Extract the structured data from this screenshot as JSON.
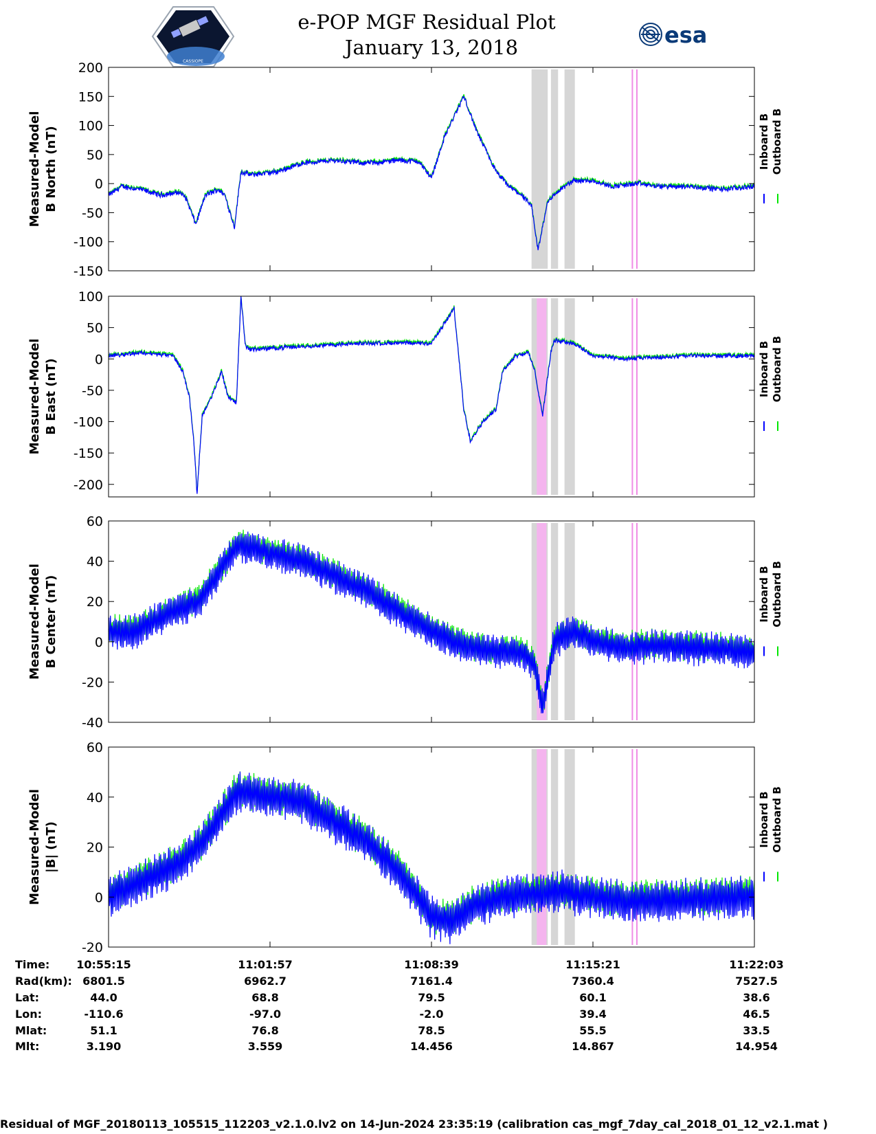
{
  "header": {
    "title_line1": "e-POP MGF Residual Plot",
    "title_line2": "January 13, 2018",
    "esa_label": "esa",
    "mission_logo_text": "CASSIOPE"
  },
  "colors": {
    "inboard": "#0000ff",
    "outboard": "#00e600",
    "gray_band": "#d6d6d6",
    "pink_band": "#f4b4ee"
  },
  "legend": {
    "inboard": "Inboard B",
    "outboard": "Outboard B"
  },
  "chart_data": [
    {
      "type": "line",
      "ylabel_line1": "Measured-Model",
      "ylabel_line2": "B North (nT)",
      "ylim": [
        -150,
        200
      ],
      "yticks": [
        -150,
        -100,
        -50,
        0,
        50,
        100,
        150,
        200
      ],
      "ytick_labels": [
        "-150",
        "-100",
        "-50",
        "0",
        "50",
        "100",
        "150",
        "200"
      ],
      "pink_bands": false,
      "series_keypoints": [
        [
          0,
          -20
        ],
        [
          0.02,
          -5
        ],
        [
          0.05,
          -10
        ],
        [
          0.08,
          -20
        ],
        [
          0.11,
          -15
        ],
        [
          0.12,
          -25
        ],
        [
          0.135,
          -70
        ],
        [
          0.15,
          -20
        ],
        [
          0.17,
          -10
        ],
        [
          0.18,
          -20
        ],
        [
          0.195,
          -75
        ],
        [
          0.205,
          20
        ],
        [
          0.22,
          15
        ],
        [
          0.26,
          20
        ],
        [
          0.3,
          35
        ],
        [
          0.35,
          40
        ],
        [
          0.4,
          35
        ],
        [
          0.45,
          40
        ],
        [
          0.48,
          38
        ],
        [
          0.5,
          10
        ],
        [
          0.52,
          80
        ],
        [
          0.55,
          150
        ],
        [
          0.57,
          90
        ],
        [
          0.6,
          20
        ],
        [
          0.62,
          -5
        ],
        [
          0.64,
          -20
        ],
        [
          0.655,
          -40
        ],
        [
          0.665,
          -115
        ],
        [
          0.68,
          -30
        ],
        [
          0.7,
          -10
        ],
        [
          0.72,
          5
        ],
        [
          0.75,
          5
        ],
        [
          0.78,
          -5
        ],
        [
          0.82,
          0
        ],
        [
          0.85,
          -5
        ],
        [
          0.9,
          -5
        ],
        [
          0.95,
          -10
        ],
        [
          1,
          -5
        ]
      ],
      "noise": 4,
      "outboard_offset": 2
    },
    {
      "type": "line",
      "ylabel_line1": "Measured-Model",
      "ylabel_line2": "B East (nT)",
      "ylim": [
        -220,
        100
      ],
      "yticks": [
        -200,
        -150,
        -100,
        -50,
        0,
        50,
        100
      ],
      "ytick_labels": [
        "-200",
        "-150",
        "-100",
        "-50",
        "0",
        "50",
        "100"
      ],
      "pink_bands": true,
      "series_keypoints": [
        [
          0,
          5
        ],
        [
          0.05,
          10
        ],
        [
          0.1,
          5
        ],
        [
          0.115,
          -20
        ],
        [
          0.125,
          -60
        ],
        [
          0.132,
          -130
        ],
        [
          0.137,
          -215
        ],
        [
          0.145,
          -90
        ],
        [
          0.16,
          -60
        ],
        [
          0.175,
          -20
        ],
        [
          0.185,
          -60
        ],
        [
          0.198,
          -70
        ],
        [
          0.205,
          100
        ],
        [
          0.212,
          20
        ],
        [
          0.22,
          15
        ],
        [
          0.3,
          20
        ],
        [
          0.4,
          25
        ],
        [
          0.5,
          25
        ],
        [
          0.535,
          80
        ],
        [
          0.55,
          -80
        ],
        [
          0.56,
          -130
        ],
        [
          0.58,
          -100
        ],
        [
          0.6,
          -80
        ],
        [
          0.61,
          -20
        ],
        [
          0.63,
          5
        ],
        [
          0.65,
          10
        ],
        [
          0.66,
          -20
        ],
        [
          0.672,
          -90
        ],
        [
          0.685,
          10
        ],
        [
          0.69,
          30
        ],
        [
          0.72,
          25
        ],
        [
          0.75,
          5
        ],
        [
          0.8,
          0
        ],
        [
          0.9,
          5
        ],
        [
          1,
          5
        ]
      ],
      "noise": 3,
      "outboard_offset": 2
    },
    {
      "type": "line",
      "ylabel_line1": "Measured-Model",
      "ylabel_line2": "B Center (nT)",
      "ylim": [
        -40,
        60
      ],
      "yticks": [
        -40,
        -20,
        0,
        20,
        40,
        60
      ],
      "ytick_labels": [
        "-40",
        "-20",
        "0",
        "20",
        "40",
        "60"
      ],
      "pink_bands": true,
      "series_keypoints": [
        [
          0,
          5
        ],
        [
          0.04,
          5
        ],
        [
          0.1,
          15
        ],
        [
          0.14,
          20
        ],
        [
          0.2,
          48
        ],
        [
          0.3,
          40
        ],
        [
          0.4,
          25
        ],
        [
          0.5,
          5
        ],
        [
          0.55,
          -2
        ],
        [
          0.6,
          -5
        ],
        [
          0.64,
          -5
        ],
        [
          0.66,
          -12
        ],
        [
          0.672,
          -33
        ],
        [
          0.69,
          0
        ],
        [
          0.72,
          5
        ],
        [
          0.75,
          0
        ],
        [
          0.8,
          -3
        ],
        [
          0.85,
          -2
        ],
        [
          0.9,
          -3
        ],
        [
          1,
          -5
        ]
      ],
      "noise": 7,
      "outboard_offset": 1
    },
    {
      "type": "line",
      "ylabel_line1": "Measured-Model",
      "ylabel_line2": "|B| (nT)",
      "ylim": [
        -20,
        60
      ],
      "yticks": [
        -20,
        0,
        20,
        40,
        60
      ],
      "ytick_labels": [
        "-20",
        "0",
        "20",
        "40",
        "60"
      ],
      "pink_bands": true,
      "series_keypoints": [
        [
          0,
          0
        ],
        [
          0.04,
          5
        ],
        [
          0.1,
          12
        ],
        [
          0.14,
          20
        ],
        [
          0.2,
          42
        ],
        [
          0.3,
          38
        ],
        [
          0.4,
          22
        ],
        [
          0.45,
          10
        ],
        [
          0.5,
          -8
        ],
        [
          0.53,
          -10
        ],
        [
          0.57,
          -3
        ],
        [
          0.62,
          0
        ],
        [
          0.7,
          2
        ],
        [
          0.75,
          0
        ],
        [
          0.8,
          -2
        ],
        [
          0.9,
          -1
        ],
        [
          1,
          0
        ]
      ],
      "noise": 7,
      "outboard_offset": 1
    }
  ],
  "gray_bands": [
    [
      0.655,
      0.68
    ],
    [
      0.685,
      0.696
    ],
    [
      0.706,
      0.722
    ]
  ],
  "pink_bands": [
    [
      0.663,
      0.678
    ]
  ],
  "pink_lines": [
    0.81,
    0.817
  ],
  "info_table": {
    "row_labels": [
      "Time:",
      "Rad(km):",
      "Lat:",
      "Lon:",
      "Mlat:",
      "Mlt:"
    ],
    "columns": [
      [
        "10:55:15",
        "6801.5",
        "44.0",
        "-110.6",
        "51.1",
        "3.190"
      ],
      [
        "11:01:57",
        "6962.7",
        "68.8",
        "-97.0",
        "76.8",
        "3.559"
      ],
      [
        "11:08:39",
        "7161.4",
        "79.5",
        "-2.0",
        "78.5",
        "14.456"
      ],
      [
        "11:15:21",
        "7360.4",
        "60.1",
        "39.4",
        "55.5",
        "14.867"
      ],
      [
        "11:22:03",
        "7527.5",
        "38.6",
        "46.5",
        "33.5",
        "14.954"
      ]
    ]
  },
  "footer": "Residual of MGF_20180113_105515_112203_v2.1.0.lv2 on 14-Jun-2024 23:35:19 (calibration cas_mgf_7day_cal_2018_01_12_v2.1.mat )"
}
